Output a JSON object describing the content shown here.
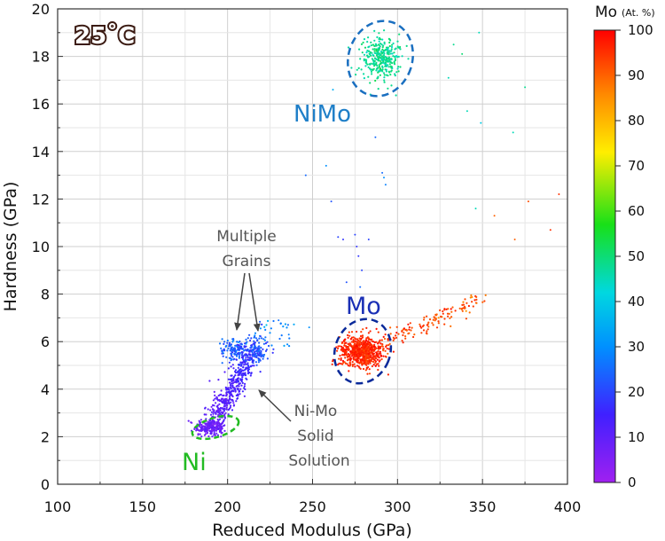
{
  "chart_data": {
    "type": "scatter",
    "title": "",
    "xlabel": "Reduced Modulus (GPa)",
    "ylabel": "Hardness (GPa)",
    "xlim": [
      100,
      400
    ],
    "ylim": [
      0,
      20
    ],
    "xticks": [
      "100",
      "150",
      "200",
      "250",
      "300",
      "350",
      "400"
    ],
    "yticks": [
      "0",
      "2",
      "4",
      "6",
      "8",
      "10",
      "12",
      "14",
      "16",
      "18",
      "20"
    ],
    "grid": true,
    "temperature_label": "25˚C",
    "colorbar": {
      "title": "Mo",
      "unit": "(At. %)",
      "range": [
        0,
        100
      ],
      "ticks": [
        "0",
        "10",
        "20",
        "30",
        "40",
        "50",
        "60",
        "70",
        "80",
        "90",
        "100"
      ]
    },
    "clusters": [
      {
        "name": "Ni",
        "label": "Ni",
        "label_color": "#22bb22",
        "center": [
          190,
          2.4
        ],
        "n": 260,
        "mo_at_pct": 8
      },
      {
        "name": "Ni-Mo solid solution",
        "label": "",
        "center": [
          205,
          3.6
        ],
        "n": 420,
        "mo_at_pct": 12
      },
      {
        "name": "Multiple grains left",
        "label": "",
        "center": [
          204,
          5.7
        ],
        "n": 120,
        "mo_at_pct": 24
      },
      {
        "name": "Multiple grains right",
        "label": "",
        "center": [
          217,
          5.6
        ],
        "n": 110,
        "mo_at_pct": 22
      },
      {
        "name": "Mo",
        "label": "Mo",
        "label_color": "#1a2fb5",
        "center": [
          279,
          5.6
        ],
        "n": 700,
        "mo_at_pct": 96
      },
      {
        "name": "Mo tail",
        "label": "",
        "center": [
          320,
          6.5
        ],
        "n": 130,
        "mo_at_pct": 92
      },
      {
        "name": "NiMo",
        "label": "NiMo",
        "label_color": "#1f7fc8",
        "center": [
          290,
          17.9
        ],
        "n": 320,
        "mo_at_pct": 48
      }
    ],
    "annotations": [
      {
        "text": [
          "Multiple",
          "Grains"
        ],
        "target": [
          [
            204,
            6.4
          ],
          [
            216,
            6.4
          ]
        ]
      },
      {
        "text": [
          "Ni-Mo",
          "Solid",
          "Solution"
        ],
        "target": [
          [
            216,
            4.1
          ]
        ]
      }
    ]
  }
}
